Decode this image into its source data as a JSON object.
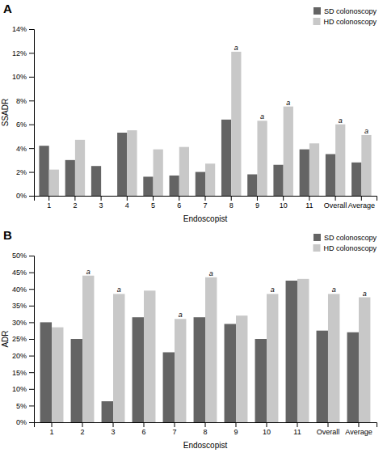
{
  "chart_data": [
    {
      "type": "bar",
      "title": "A",
      "categories": [
        "1",
        "2",
        "3",
        "4",
        "5",
        "6",
        "7",
        "8",
        "9",
        "10",
        "11",
        "Overall",
        "Average"
      ],
      "series": [
        {
          "name": "SD colonoscopy",
          "color": "#646464",
          "values": [
            4.2,
            3.0,
            2.5,
            5.3,
            1.6,
            1.7,
            2.0,
            6.4,
            1.8,
            2.6,
            3.9,
            3.5,
            2.8
          ]
        },
        {
          "name": "HD colonoscopy",
          "color": "#c8c8c8",
          "values": [
            2.2,
            4.7,
            null,
            5.5,
            3.9,
            4.1,
            2.7,
            12.1,
            6.3,
            7.5,
            4.4,
            6.0,
            5.1
          ]
        }
      ],
      "annotations": [
        {
          "text": "a",
          "x": "8",
          "series": "HD colonoscopy"
        },
        {
          "text": "a",
          "x": "9",
          "series": "HD colonoscopy"
        },
        {
          "text": "a",
          "x": "10",
          "series": "HD colonoscopy"
        },
        {
          "text": "a",
          "x": "Overall",
          "series": "HD colonoscopy"
        },
        {
          "text": "a",
          "x": "Average",
          "series": "HD colonoscopy"
        }
      ],
      "xlabel": "Endoscopist",
      "ylabel": "SSADR",
      "ylim": [
        0,
        14
      ],
      "yticks": [
        {
          "value": 0,
          "label": "0%"
        },
        {
          "value": 2,
          "label": "2%"
        },
        {
          "value": 4,
          "label": "4%"
        },
        {
          "value": 6,
          "label": "6%"
        },
        {
          "value": 8,
          "label": "8%"
        },
        {
          "value": 10,
          "label": "10%"
        },
        {
          "value": 12,
          "label": "12%"
        },
        {
          "value": 14,
          "label": "14%"
        }
      ],
      "legend": "upper right",
      "grid": false
    },
    {
      "type": "bar",
      "title": "B",
      "categories": [
        "1",
        "2",
        "3",
        "6",
        "7",
        "8",
        "9",
        "10",
        "11",
        "Overall",
        "Average"
      ],
      "series": [
        {
          "name": "SD colonoscopy",
          "color": "#646464",
          "values": [
            30.0,
            25.0,
            6.3,
            31.5,
            21.0,
            31.5,
            29.5,
            25.0,
            42.5,
            27.5,
            27.0
          ]
        },
        {
          "name": "HD colonoscopy",
          "color": "#c8c8c8",
          "values": [
            28.5,
            44.0,
            38.5,
            39.5,
            31.0,
            43.5,
            32.0,
            38.5,
            43.0,
            38.5,
            37.5
          ]
        }
      ],
      "annotations": [
        {
          "text": "a",
          "x": "2",
          "series": "HD colonoscopy"
        },
        {
          "text": "a",
          "x": "3",
          "series": "HD colonoscopy"
        },
        {
          "text": "a",
          "x": "7",
          "series": "HD colonoscopy"
        },
        {
          "text": "a",
          "x": "8",
          "series": "HD colonoscopy"
        },
        {
          "text": "a",
          "x": "10",
          "series": "HD colonoscopy"
        },
        {
          "text": "a",
          "x": "Overall",
          "series": "HD colonoscopy"
        },
        {
          "text": "a",
          "x": "Average",
          "series": "HD colonoscopy"
        }
      ],
      "xlabel": "Endoscopist",
      "ylabel": "ADR",
      "ylim": [
        0,
        50
      ],
      "yticks": [
        {
          "value": 0,
          "label": "0%"
        },
        {
          "value": 5,
          "label": "5%"
        },
        {
          "value": 10,
          "label": "10%"
        },
        {
          "value": 15,
          "label": "15%"
        },
        {
          "value": 20,
          "label": "20%"
        },
        {
          "value": 25,
          "label": "25%"
        },
        {
          "value": 30,
          "label": "30%"
        },
        {
          "value": 35,
          "label": "35%"
        },
        {
          "value": 40,
          "label": "40%"
        },
        {
          "value": 45,
          "label": "45%"
        },
        {
          "value": 50,
          "label": "50%"
        }
      ],
      "legend": "upper right",
      "grid": false
    }
  ]
}
